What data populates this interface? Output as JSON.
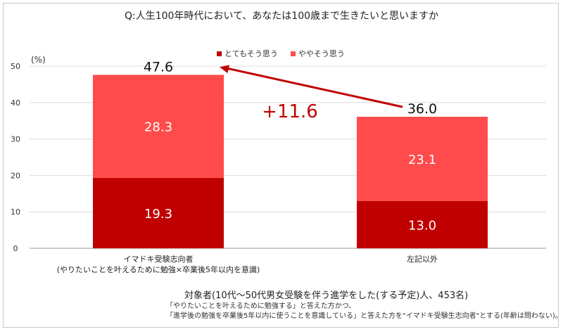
{
  "title": "Q:人生100年時代において、あなたは100歳まで生きたいと思いますか",
  "unit_label": "(%)",
  "legend": [
    {
      "label": "とてもそう思う",
      "color": "#c00000"
    },
    {
      "label": "ややそう思う",
      "color": "#ff4b4b"
    }
  ],
  "diff_label": "+11.6",
  "diff_color": "#c00000",
  "note_main": "対象者(10代〜50代男女受験を伴う進学をした(する予定)人、453名)",
  "note_lines": [
    "「やりたいことを叶えるために勉強する」と答えた方かつ、",
    "「進学後の勉強を卒業後5年以内に使うことを意識している」と答えた方を\"イマドキ受験生志向者\"とする(年齢は問わない)。"
  ],
  "chart_data": {
    "type": "bar",
    "stacked": true,
    "categories": [
      [
        "イマドキ受験志向者",
        "(やりたいことを叶えるために勉強×卒業後5年以内を意識)"
      ],
      [
        "左記以外"
      ]
    ],
    "series": [
      {
        "name": "とてもそう思う",
        "values": [
          19.3,
          13.0
        ],
        "color": "#c00000"
      },
      {
        "name": "ややそう思う",
        "values": [
          28.3,
          23.1
        ],
        "color": "#ff4b4b"
      }
    ],
    "totals": [
      "47.6",
      "36.0"
    ],
    "segment_labels": [
      [
        "19.3",
        "13.0"
      ],
      [
        "28.3",
        "23.1"
      ]
    ],
    "ylim": [
      0,
      50
    ],
    "yticks": [
      "0",
      "10",
      "20",
      "30",
      "40",
      "50"
    ],
    "grid": true,
    "legend_position": "top-center"
  }
}
